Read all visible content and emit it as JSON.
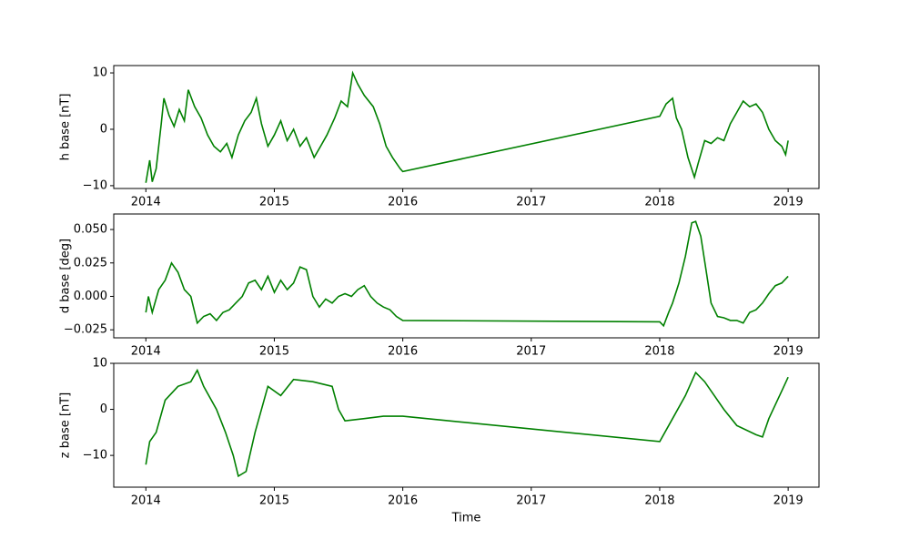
{
  "chart_data": [
    {
      "type": "line",
      "ylabel": "h base [nT]",
      "x": [
        2014.0,
        2014.03,
        2014.05,
        2014.08,
        2014.12,
        2014.14,
        2014.18,
        2014.22,
        2014.26,
        2014.3,
        2014.33,
        2014.38,
        2014.43,
        2014.48,
        2014.53,
        2014.58,
        2014.63,
        2014.67,
        2014.72,
        2014.77,
        2014.82,
        2014.86,
        2014.9,
        2014.95,
        2015.0,
        2015.05,
        2015.1,
        2015.15,
        2015.2,
        2015.25,
        2015.31,
        2015.36,
        2015.41,
        2015.47,
        2015.52,
        2015.57,
        2015.61,
        2015.65,
        2015.7,
        2015.77,
        2015.82,
        2015.87,
        2015.92,
        2015.98,
        2016.0,
        2018.0,
        2018.05,
        2018.1,
        2018.13,
        2018.17,
        2018.22,
        2018.27,
        2018.3,
        2018.35,
        2018.4,
        2018.45,
        2018.5,
        2018.55,
        2018.6,
        2018.65,
        2018.7,
        2018.75,
        2018.8,
        2018.85,
        2018.9,
        2018.95,
        2018.98,
        2019.0
      ],
      "values": [
        -9.5,
        -5.5,
        -9.3,
        -7,
        1,
        5.5,
        2.5,
        0.5,
        3.5,
        1.5,
        7,
        4,
        2,
        -1,
        -3,
        -4,
        -2.5,
        -5,
        -1,
        1.5,
        3,
        5.5,
        1,
        -3,
        -1,
        1.5,
        -2,
        0,
        -3,
        -1.5,
        -5,
        -3,
        -1,
        2,
        5,
        4,
        10,
        8,
        6,
        4,
        1,
        -3,
        -5,
        -7,
        -7.5,
        2.3,
        4.5,
        5.5,
        2,
        0,
        -5,
        -8.5,
        -6,
        -2,
        -2.5,
        -1.5,
        -2,
        1,
        3,
        5,
        4,
        4.5,
        3,
        0,
        -2,
        -3,
        -4.5,
        -2
      ],
      "color": "#008000",
      "xlim": [
        2013.75,
        2019.24
      ],
      "ylim": [
        -10.5,
        11.3
      ],
      "xticks": [
        2014,
        2015,
        2016,
        2017,
        2018,
        2019
      ],
      "yticks": [
        {
          "value": -10,
          "label": "−10"
        },
        0,
        10
      ]
    },
    {
      "type": "line",
      "ylabel": "d base [deg]",
      "x": [
        2014.0,
        2014.02,
        2014.05,
        2014.1,
        2014.15,
        2014.2,
        2014.25,
        2014.3,
        2014.35,
        2014.4,
        2014.45,
        2014.5,
        2014.55,
        2014.6,
        2014.65,
        2014.7,
        2014.75,
        2014.8,
        2014.85,
        2014.9,
        2014.95,
        2015.0,
        2015.05,
        2015.1,
        2015.15,
        2015.2,
        2015.25,
        2015.3,
        2015.35,
        2015.4,
        2015.45,
        2015.5,
        2015.55,
        2015.6,
        2015.65,
        2015.7,
        2015.75,
        2015.8,
        2015.85,
        2015.9,
        2015.95,
        2016.0,
        2018.0,
        2018.03,
        2018.07,
        2018.1,
        2018.15,
        2018.2,
        2018.25,
        2018.28,
        2018.32,
        2018.36,
        2018.4,
        2018.45,
        2018.5,
        2018.55,
        2018.6,
        2018.65,
        2018.7,
        2018.75,
        2018.8,
        2018.85,
        2018.9,
        2018.95,
        2019.0
      ],
      "values": [
        -0.012,
        0.0,
        -0.012,
        0.005,
        0.012,
        0.025,
        0.018,
        0.005,
        0.0,
        -0.02,
        -0.015,
        -0.013,
        -0.018,
        -0.012,
        -0.01,
        -0.005,
        0.0,
        0.01,
        0.012,
        0.005,
        0.015,
        0.003,
        0.012,
        0.005,
        0.01,
        0.022,
        0.02,
        0.0,
        -0.008,
        -0.002,
        -0.005,
        0.0,
        0.002,
        0.0,
        0.005,
        0.008,
        0.0,
        -0.005,
        -0.008,
        -0.01,
        -0.015,
        -0.018,
        -0.019,
        -0.022,
        -0.012,
        -0.005,
        0.01,
        0.03,
        0.055,
        0.056,
        0.045,
        0.02,
        -0.005,
        -0.015,
        -0.016,
        -0.018,
        -0.018,
        -0.02,
        -0.012,
        -0.01,
        -0.005,
        0.002,
        0.008,
        0.01,
        0.015
      ],
      "color": "#008000",
      "xlim": [
        2013.75,
        2019.24
      ],
      "ylim": [
        -0.031,
        0.0616
      ],
      "xticks": [
        2014,
        2015,
        2016,
        2017,
        2018,
        2019
      ],
      "yticks": [
        {
          "value": -0.025,
          "label": "−0.025"
        },
        {
          "value": 0,
          "label": "0.000"
        },
        {
          "value": 0.025,
          "label": "0.025"
        },
        {
          "value": 0.05,
          "label": "0.050"
        }
      ]
    },
    {
      "type": "line",
      "ylabel": "z base [nT]",
      "xlabel": "Time",
      "x": [
        2014.0,
        2014.03,
        2014.08,
        2014.15,
        2014.25,
        2014.35,
        2014.4,
        2014.45,
        2014.55,
        2014.62,
        2014.68,
        2014.72,
        2014.78,
        2014.85,
        2014.95,
        2015.05,
        2015.15,
        2015.3,
        2015.45,
        2015.5,
        2015.55,
        2015.7,
        2015.85,
        2016.0,
        2018.0,
        2018.1,
        2018.2,
        2018.28,
        2018.35,
        2018.5,
        2018.6,
        2018.75,
        2018.8,
        2018.85,
        2018.95,
        2019.0
      ],
      "values": [
        -12,
        -7,
        -5,
        2,
        5,
        6,
        8.5,
        5,
        0,
        -5,
        -10,
        -14.5,
        -13.5,
        -5,
        5,
        3,
        6.5,
        6,
        5,
        0,
        -2.5,
        -2,
        -1.5,
        -1.5,
        -7,
        -2,
        3,
        8,
        6,
        0,
        -3.5,
        -5.5,
        -6,
        -2,
        4,
        7
      ],
      "color": "#008000",
      "xlim": [
        2013.75,
        2019.24
      ],
      "ylim": [
        -16.9,
        10
      ],
      "xticks": [
        2014,
        2015,
        2016,
        2017,
        2018,
        2019
      ],
      "yticks": [
        {
          "value": -10,
          "label": "−10"
        },
        0,
        10
      ]
    }
  ]
}
